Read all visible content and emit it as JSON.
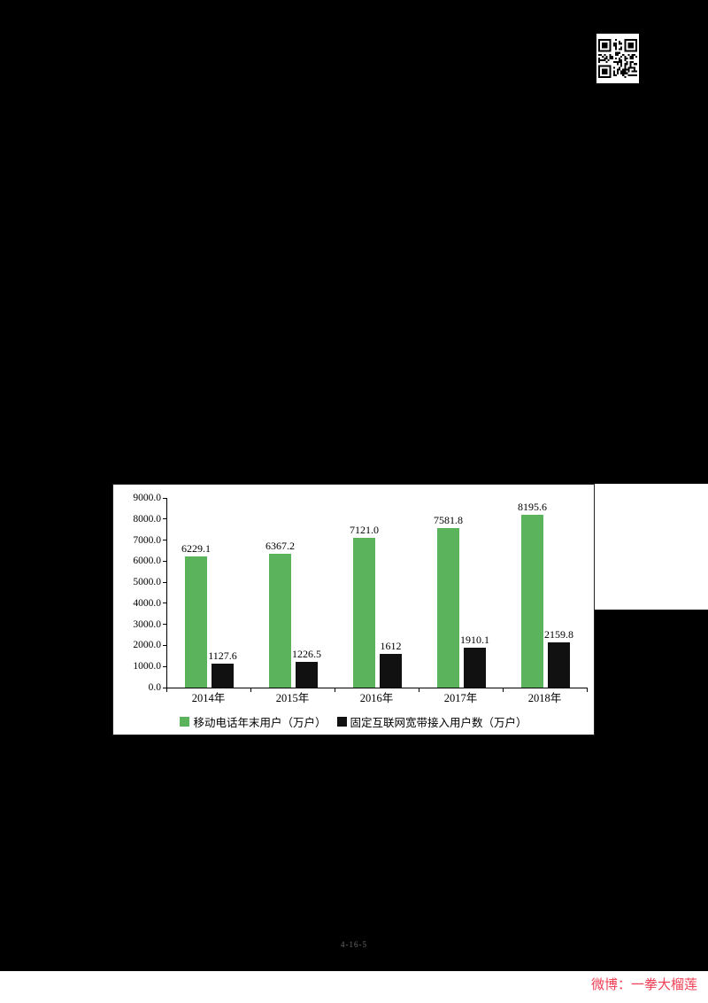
{
  "chart_data": {
    "type": "bar",
    "categories": [
      "2014年",
      "2015年",
      "2016年",
      "2017年",
      "2018年"
    ],
    "series": [
      {
        "name": "移动电话年末用户（万户）",
        "color": "#5bb45b",
        "values": [
          6229.1,
          6367.2,
          7121.0,
          7581.8,
          8195.6
        ],
        "labels": [
          "6229.1",
          "6367.2",
          "7121.0",
          "7581.8",
          "8195.6"
        ]
      },
      {
        "name": "固定互联网宽带接入用户数（万户）",
        "color": "#111111",
        "values": [
          1127.6,
          1226.5,
          1612,
          1910.1,
          2159.8
        ],
        "labels": [
          "1127.6",
          "1226.5",
          "1612",
          "1910.1",
          "2159.8"
        ]
      }
    ],
    "title": "",
    "xlabel": "",
    "ylabel": "",
    "ylim": [
      0,
      9000
    ],
    "ytick_step": 1000,
    "ytick_labels": [
      "0.0",
      "1000.0",
      "2000.0",
      "3000.0",
      "4000.0",
      "5000.0",
      "6000.0",
      "7000.0",
      "8000.0",
      "9000.0"
    ],
    "grid": false,
    "legend_position": "bottom"
  },
  "footer": {
    "mark": "4-16-5",
    "watermark": "微博：一拳大榴莲"
  },
  "icons": {
    "qr": "qr-code"
  },
  "colors": {
    "page_background": "#000000",
    "panel_background": "#ffffff",
    "bar_green": "#5bb45b",
    "bar_black": "#111111",
    "watermark_red": "#ef4055"
  }
}
